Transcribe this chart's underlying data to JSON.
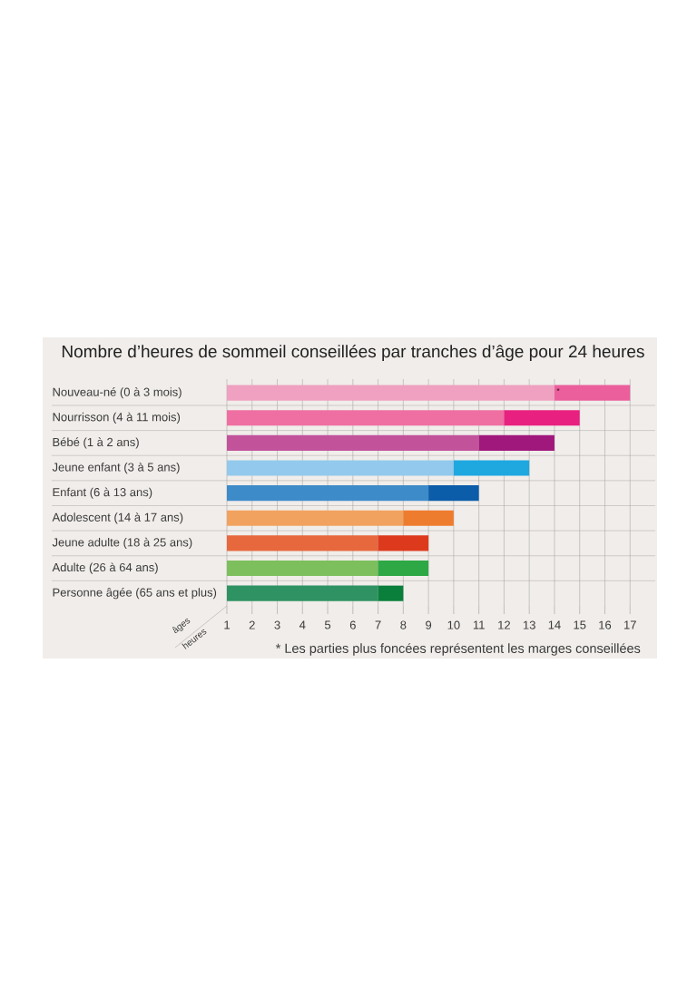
{
  "chart_data": {
    "type": "bar",
    "orientation": "horizontal",
    "title": "Nombre d’heures de sommeil conseillées par tranches d’âge pour 24 heures",
    "xlabel": "heures",
    "ylabel": "âges",
    "categories": [
      "Nouveau-né (0 à 3 mois)",
      "Nourrisson (4 à 11 mois)",
      "Bébé (1 à 2 ans)",
      "Jeune enfant (3 à 5 ans)",
      "Enfant (6 à 13 ans)",
      "Adolescent (14 à 17 ans)",
      "Jeune adulte (18 à 25 ans)",
      "Adulte (26 à 64 ans)",
      "Personne âgée (65 ans et plus)"
    ],
    "series": [
      {
        "colors": [
          "#f0a0c0",
          "#ef6fa2",
          "#c2539b",
          "#93c9ec",
          "#3e8bc9",
          "#f2a25f",
          "#e6683c",
          "#7dbf5d",
          "#2f9262"
        ],
        "base": [
          1,
          1,
          1,
          1,
          1,
          1,
          1,
          1,
          1
        ],
        "values": [
          13,
          11,
          10,
          9,
          8,
          7,
          6,
          6,
          6
        ]
      },
      {
        "colors": [
          "#ea5f9c",
          "#e8207f",
          "#a0187c",
          "#1ea8df",
          "#0b5ca9",
          "#ee7c2e",
          "#dd3a1d",
          "#2ea845",
          "#0a7f3b"
        ],
        "base": [
          14,
          12,
          11,
          10,
          9,
          8,
          7,
          7,
          7
        ],
        "values": [
          3,
          3,
          3,
          3,
          2,
          2,
          2,
          2,
          1
        ]
      }
    ],
    "xlim": [
      1,
      18
    ],
    "xticks": [
      1,
      2,
      3,
      4,
      5,
      6,
      7,
      8,
      9,
      10,
      11,
      12,
      13,
      14,
      15,
      16,
      17
    ],
    "grid": true,
    "annotations": [
      "*",
      "* Les parties plus foncées représentent les marges conseillées"
    ]
  }
}
